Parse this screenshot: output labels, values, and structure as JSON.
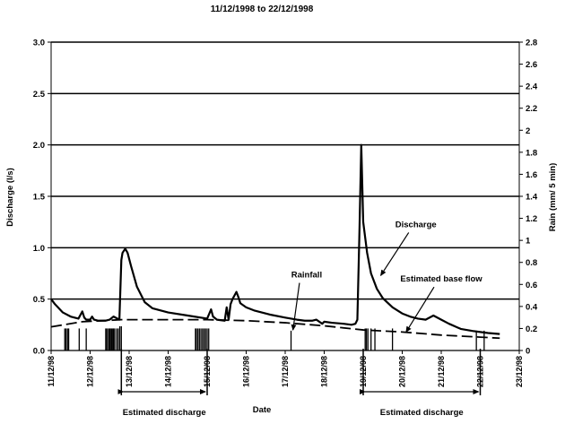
{
  "chart_data": {
    "type": "line",
    "title": "11/12/1998 to 22/12/1998",
    "xlabel": "Date",
    "ylabel_left": "Discharge (l/s)",
    "ylabel_right": "Rain (mm/ 5 min)",
    "ylim_left": [
      0,
      3.0
    ],
    "ylim_right": [
      0,
      2.8
    ],
    "x_range": [
      "11/12/98",
      "23/12/98"
    ],
    "y_ticks_left": [
      "0.0",
      "0.5",
      "1.0",
      "1.5",
      "2.0",
      "2.5",
      "3.0"
    ],
    "y_ticks_right": [
      "0",
      "0.2",
      "0.4",
      "0.6",
      "0.8",
      "1",
      "1.2",
      "1.4",
      "1.6",
      "1.8",
      "2",
      "2.2",
      "2.4",
      "2.6",
      "2.8"
    ],
    "x_ticks": [
      "11/12/98",
      "12/12/98",
      "13/12/98",
      "14/12/98",
      "15/12/98",
      "16/12/98",
      "17/12/98",
      "18/12/98",
      "19/12/98",
      "20/12/98",
      "21/12/98",
      "22/12/98",
      "23/12/98"
    ],
    "grid": "horizontal major lines on discharge axis",
    "series": [
      {
        "name": "Discharge",
        "axis": "left",
        "style": "solid",
        "x": [
          0.0,
          0.1,
          0.3,
          0.5,
          0.6,
          0.7,
          0.8,
          0.85,
          0.9,
          1.0,
          1.05,
          1.1,
          1.2,
          1.4,
          1.5,
          1.6,
          1.75,
          1.8,
          1.83,
          1.9,
          1.96,
          2.05,
          2.2,
          2.4,
          2.6,
          3.0,
          3.5,
          4.0,
          4.1,
          4.15,
          4.25,
          4.45,
          4.5,
          4.55,
          4.6,
          4.65,
          4.75,
          4.8,
          4.85,
          5.0,
          5.2,
          5.6,
          6.0,
          6.3,
          6.5,
          6.7,
          6.8,
          6.95,
          7.0,
          7.2,
          7.5,
          7.7,
          7.8,
          7.85,
          7.9,
          7.95,
          8.0,
          8.1,
          8.2,
          8.35,
          8.5,
          8.75,
          9.0,
          9.2,
          9.4,
          9.6,
          9.8,
          10.0,
          10.2,
          10.5,
          10.8,
          11.0,
          11.2,
          11.5
        ],
        "y": [
          0.5,
          0.45,
          0.37,
          0.33,
          0.32,
          0.31,
          0.38,
          0.32,
          0.3,
          0.3,
          0.33,
          0.3,
          0.29,
          0.29,
          0.3,
          0.33,
          0.3,
          0.88,
          0.95,
          0.99,
          0.95,
          0.82,
          0.62,
          0.47,
          0.41,
          0.37,
          0.34,
          0.31,
          0.4,
          0.33,
          0.3,
          0.29,
          0.42,
          0.3,
          0.45,
          0.5,
          0.57,
          0.52,
          0.46,
          0.42,
          0.39,
          0.35,
          0.32,
          0.3,
          0.29,
          0.29,
          0.3,
          0.26,
          0.28,
          0.27,
          0.26,
          0.25,
          0.26,
          0.3,
          1.1,
          2.0,
          1.25,
          0.95,
          0.75,
          0.6,
          0.51,
          0.42,
          0.36,
          0.33,
          0.31,
          0.3,
          0.34,
          0.3,
          0.26,
          0.21,
          0.19,
          0.18,
          0.17,
          0.16
        ]
      },
      {
        "name": "Estimated base flow",
        "axis": "left",
        "style": "dashed",
        "x": [
          0.0,
          0.8,
          1.8,
          3.0,
          4.0,
          5.0,
          6.0,
          7.0,
          8.0,
          9.0,
          10.0,
          11.0,
          11.5
        ],
        "y": [
          0.23,
          0.28,
          0.3,
          0.3,
          0.3,
          0.29,
          0.27,
          0.24,
          0.2,
          0.18,
          0.15,
          0.13,
          0.12
        ]
      },
      {
        "name": "Rainfall",
        "axis": "right",
        "style": "bars",
        "x": [
          0.35,
          0.38,
          0.42,
          0.45,
          0.72,
          0.9,
          1.4,
          1.43,
          1.47,
          1.5,
          1.52,
          1.55,
          1.58,
          1.6,
          1.63,
          1.68,
          1.72,
          1.76,
          1.8,
          3.7,
          3.72,
          3.76,
          3.8,
          3.84,
          3.88,
          3.92,
          3.96,
          4.0,
          4.04,
          6.15,
          8.05,
          8.08,
          8.12,
          8.2,
          8.3,
          8.75,
          10.9,
          11.1
        ],
        "y": [
          0.2,
          0.2,
          0.2,
          0.2,
          0.2,
          0.2,
          0.2,
          0.2,
          0.2,
          0.2,
          0.2,
          0.2,
          0.2,
          0.2,
          0.2,
          0.2,
          0.2,
          0.22,
          0.22,
          0.2,
          0.2,
          0.2,
          0.2,
          0.2,
          0.2,
          0.2,
          0.2,
          0.2,
          0.2,
          0.18,
          0.2,
          0.2,
          0.2,
          0.2,
          0.2,
          0.2,
          0.18,
          0.18
        ]
      }
    ],
    "annotations": [
      {
        "text": "Discharge",
        "x": 9.35,
        "y": 1.2,
        "arrow_to_x": 8.45,
        "arrow_to_y": 0.73
      },
      {
        "text": "Rainfall",
        "x": 6.55,
        "y": 0.71,
        "arrow_to_x": 6.2,
        "arrow_to_y": 0.2
      },
      {
        "text": "Estimated base flow",
        "x": 10.0,
        "y": 0.67,
        "arrow_to_x": 9.1,
        "arrow_to_y": 0.18
      }
    ],
    "brackets": [
      {
        "text": "Estimated discharge",
        "from": 1.8,
        "to": 4.0
      },
      {
        "text": "Estimated discharge",
        "from": 8.0,
        "to": 11.0
      }
    ]
  }
}
